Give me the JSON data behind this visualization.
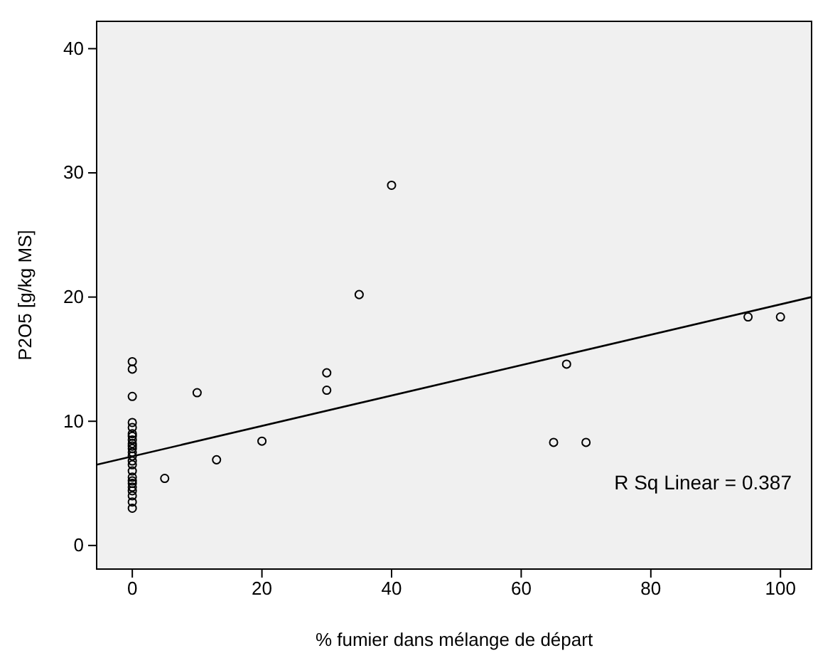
{
  "chart_data": {
    "type": "scatter",
    "xlabel": "% fumier dans mélange de départ",
    "ylabel": "P2O5 [g/kg MS]",
    "xlim": [
      -5.5,
      104.8
    ],
    "ylim": [
      -1.9,
      42.2
    ],
    "xticks": [
      0,
      20,
      40,
      60,
      80,
      100
    ],
    "yticks": [
      0,
      10,
      20,
      30,
      40
    ],
    "grid": false,
    "annotations": [
      "R Sq Linear = 0.387"
    ],
    "series": [
      {
        "marker": "circle",
        "color": "#000000",
        "x": [
          0,
          0,
          0,
          0,
          0,
          0,
          0,
          0,
          0,
          0,
          0,
          0,
          0,
          0,
          0,
          0,
          0,
          0,
          0,
          0,
          0,
          0,
          0,
          0,
          5,
          10,
          13,
          20,
          30,
          30,
          35,
          40,
          65,
          67,
          70,
          95,
          100
        ],
        "values": [
          14.8,
          14.2,
          12.0,
          9.9,
          9.5,
          9.0,
          8.8,
          8.5,
          8.2,
          8.0,
          7.8,
          7.5,
          7.2,
          6.8,
          6.5,
          6.0,
          5.5,
          5.2,
          5.0,
          4.7,
          4.4,
          4.0,
          3.5,
          3.0,
          5.4,
          12.3,
          6.9,
          8.4,
          13.9,
          12.5,
          20.2,
          29.0,
          8.3,
          14.6,
          8.3,
          18.4,
          18.4
        ]
      },
      {
        "type": "line",
        "color": "#000000",
        "x": [
          -5.5,
          104.8
        ],
        "values": [
          6.5,
          20.0
        ]
      }
    ]
  }
}
